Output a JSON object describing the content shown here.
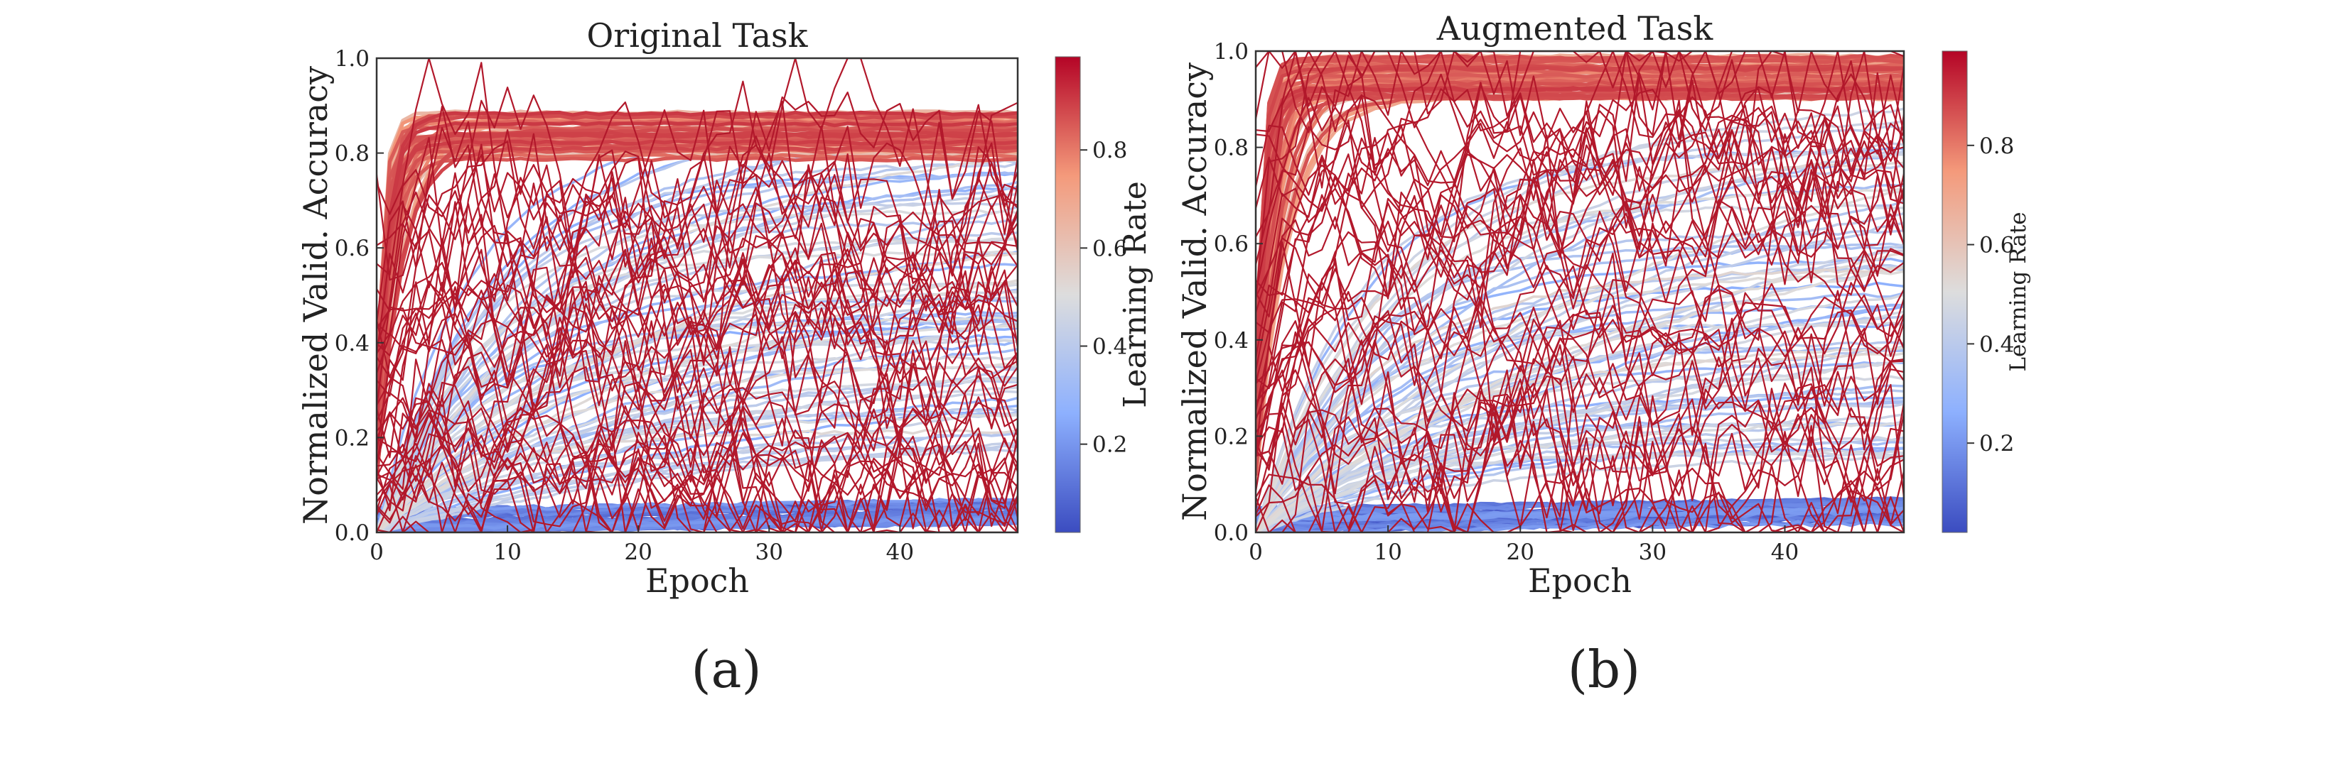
{
  "chart_data": [
    {
      "type": "line",
      "title": "Original Task",
      "xlabel": "Epoch",
      "ylabel": "Normalized Valid. Accuracy",
      "xlim": [
        0,
        49
      ],
      "ylim": [
        0.0,
        1.0
      ],
      "xticks": [
        "0",
        "10",
        "20",
        "30",
        "40"
      ],
      "xtick_values": [
        0,
        10,
        20,
        30,
        40
      ],
      "yticks": [
        "0.0",
        "0.2",
        "0.4",
        "0.6",
        "0.8",
        "1.0"
      ],
      "ytick_values": [
        0.0,
        0.2,
        0.4,
        0.6,
        0.8,
        1.0
      ],
      "colorbar": {
        "label": "Learning Rate",
        "ticks": [
          "0.2",
          "0.4",
          "0.6",
          "0.8"
        ],
        "tick_values": [
          0.2,
          0.4,
          0.6,
          0.8
        ],
        "range": [
          0.02,
          0.99
        ],
        "colormap": "coolwarm"
      },
      "grid": false,
      "series_description": "Hundreds of learning curves colored by learning rate: high-LR curves saturate near 0.85-0.9, mid-LR curves rise slowly, low-LR curves stay near 0.0-0.05, and noisy dark-red curves fluctuate between 0.0 and 0.75.",
      "caption": "(a)"
    },
    {
      "type": "line",
      "title": "Augmented Task",
      "xlabel": "Epoch",
      "ylabel": "Normalized Valid. Accuracy",
      "xlim": [
        0,
        49
      ],
      "ylim": [
        0.0,
        1.0
      ],
      "xticks": [
        "0",
        "10",
        "20",
        "30",
        "40"
      ],
      "xtick_values": [
        0,
        10,
        20,
        30,
        40
      ],
      "yticks": [
        "0.0",
        "0.2",
        "0.4",
        "0.6",
        "0.8",
        "1.0"
      ],
      "ytick_values": [
        0.0,
        0.2,
        0.4,
        0.6,
        0.8,
        1.0
      ],
      "colorbar": {
        "label": "Learning Rate",
        "ticks": [
          "0.2",
          "0.4",
          "0.6",
          "0.8"
        ],
        "tick_values": [
          0.2,
          0.4,
          0.6,
          0.8
        ],
        "range": [
          0.02,
          0.99
        ],
        "colormap": "coolwarm"
      },
      "grid": false,
      "series_description": "Hundreds of learning curves colored by learning rate: high-LR curves saturate near 0.95-1.0, mid-LR curves rise gradually, low-LR curves stay near 0.0-0.1, and noisy dark-red curves fluctuate between 0.0 and 0.95.",
      "caption": "(b)"
    }
  ],
  "colors": {
    "cold": "#3b4cc0",
    "neutral": "#dddddd",
    "hot": "#b40426",
    "noisy": "#b2182b"
  }
}
